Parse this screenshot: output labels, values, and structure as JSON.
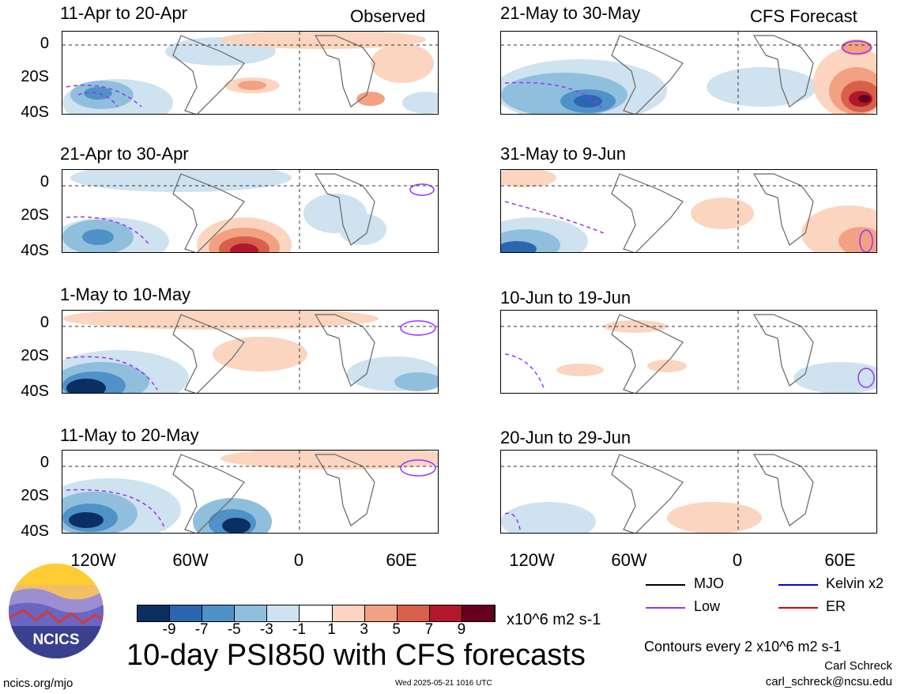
{
  "headers": {
    "left": "Observed",
    "right": "CFS Forecast"
  },
  "panels_left": [
    {
      "title": "11-Apr to 20-Apr"
    },
    {
      "title": "21-Apr to 30-Apr"
    },
    {
      "title": "1-May to 10-May"
    },
    {
      "title": "11-May to 20-May"
    }
  ],
  "panels_right": [
    {
      "title": "21-May to 30-May"
    },
    {
      "title": "31-May to 9-Jun"
    },
    {
      "title": "10-Jun to 19-Jun"
    },
    {
      "title": "20-Jun to 29-Jun"
    }
  ],
  "y_ticks": [
    "0",
    "20S",
    "40S"
  ],
  "x_ticks": [
    "120W",
    "60W",
    "0",
    "60E"
  ],
  "legend": {
    "mjo": "MJO",
    "kelvin": "Kelvin x2",
    "low": "Low",
    "er": "ER",
    "colors": {
      "mjo": "#000000",
      "kelvin": "#0000dd",
      "low": "#9933ff",
      "er": "#dd0000"
    }
  },
  "colorbar": {
    "colors": [
      "#0b2f63",
      "#2b66b0",
      "#4f92c8",
      "#90bfdd",
      "#cfe2f0",
      "#ffffff",
      "#fbd5c0",
      "#f2a282",
      "#d8604a",
      "#b2182b",
      "#67001f"
    ],
    "ticks": [
      "-9",
      "-7",
      "-5",
      "-3",
      "-1",
      "1",
      "3",
      "5",
      "7",
      "9"
    ],
    "units": "x10^6 m2 s-1"
  },
  "logo_text": "NCICS",
  "main_title": "10-day PSI850 with CFS forecasts",
  "contours_note": "Contours every 2 x10^6 m2 s-1",
  "author": "Carl Schreck",
  "email": "carl_schreck@ncsu.edu",
  "url": "ncics.org/mjo",
  "timestamp": "Wed 2025-05-21 1016 UTC"
}
